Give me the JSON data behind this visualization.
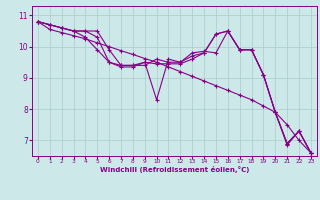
{
  "xlabel": "Windchill (Refroidissement éolien,°C)",
  "ylabel": "",
  "background_color": "#cce8e8",
  "grid_color": "#aacccc",
  "line_color": "#880088",
  "xlim": [
    -0.5,
    23.5
  ],
  "ylim": [
    6.5,
    11.3
  ],
  "yticks": [
    7,
    8,
    9,
    10,
    11
  ],
  "xticks": [
    0,
    1,
    2,
    3,
    4,
    5,
    6,
    7,
    8,
    9,
    10,
    11,
    12,
    13,
    14,
    15,
    16,
    17,
    18,
    19,
    20,
    21,
    22,
    23
  ],
  "series": [
    [
      10.8,
      10.7,
      10.6,
      10.5,
      10.5,
      10.5,
      9.9,
      9.4,
      9.4,
      9.5,
      8.3,
      9.6,
      9.5,
      9.8,
      9.85,
      9.8,
      10.5,
      9.9,
      9.9,
      9.1,
      7.9,
      6.85,
      7.3,
      6.6
    ],
    [
      10.8,
      10.7,
      10.6,
      10.5,
      10.5,
      10.3,
      9.5,
      9.4,
      9.4,
      9.4,
      9.6,
      9.5,
      9.5,
      9.7,
      9.8,
      10.4,
      10.5,
      9.9,
      9.9,
      9.1,
      7.9,
      6.9,
      7.3,
      6.6
    ],
    [
      10.8,
      10.7,
      10.6,
      10.5,
      10.3,
      9.9,
      9.5,
      9.35,
      9.35,
      9.5,
      9.45,
      9.45,
      9.45,
      9.6,
      9.8,
      10.4,
      10.5,
      9.9,
      9.9,
      9.1,
      7.9,
      6.9,
      7.3,
      6.6
    ],
    [
      10.8,
      10.55,
      10.45,
      10.35,
      10.25,
      10.12,
      10.0,
      9.87,
      9.75,
      9.62,
      9.5,
      9.35,
      9.2,
      9.05,
      8.9,
      8.75,
      8.6,
      8.45,
      8.3,
      8.1,
      7.9,
      7.5,
      7.0,
      6.6
    ]
  ]
}
